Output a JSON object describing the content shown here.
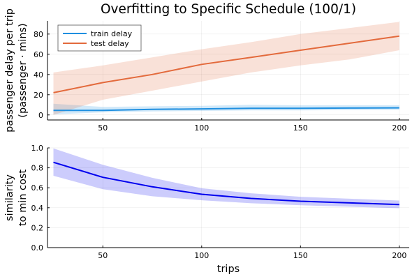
{
  "figure": {
    "title": "Overfitting to Specific Schedule (100/1)"
  },
  "chart_data": [
    {
      "type": "line",
      "title": "Overfitting to Specific Schedule (100/1)",
      "xlabel": "",
      "ylabel_lines": [
        "passenger delay per trip",
        "(passenger · mins)"
      ],
      "xlim": [
        22,
        205
      ],
      "ylim": [
        -5,
        93
      ],
      "xticks": [
        50,
        100,
        150,
        200
      ],
      "yticks": [
        0,
        20,
        40,
        60,
        80
      ],
      "grid": true,
      "legend": "top-left",
      "x": [
        25,
        50,
        75,
        100,
        125,
        150,
        175,
        200
      ],
      "series": [
        {
          "name": "train delay",
          "color": "#1f8fe0",
          "band_color": "#1f8fe0",
          "values": [
            4.5,
            4.5,
            5.5,
            6.0,
            6.5,
            6.5,
            6.8,
            7.0
          ],
          "lower": [
            0.5,
            2.5,
            3.5,
            4.0,
            4.5,
            4.5,
            4.8,
            5.0
          ],
          "upper": [
            11.0,
            8.0,
            8.5,
            9.0,
            10.0,
            9.5,
            9.5,
            9.5
          ]
        },
        {
          "name": "test delay",
          "color": "#e36a3c",
          "band_color": "#e36a3c",
          "values": [
            22,
            32,
            40,
            50,
            57,
            64,
            71,
            78
          ],
          "lower": [
            0,
            15,
            24,
            33,
            42,
            49,
            55,
            64
          ],
          "upper": [
            42,
            49,
            57,
            65,
            72,
            80,
            86,
            92
          ]
        }
      ]
    },
    {
      "type": "line",
      "title": "",
      "xlabel": "trips",
      "ylabel_lines": [
        "similarity",
        "to min cost"
      ],
      "xlim": [
        22,
        205
      ],
      "ylim": [
        0,
        1.0
      ],
      "xticks": [
        50,
        100,
        150,
        200
      ],
      "yticks": [
        0.0,
        0.2,
        0.4,
        0.6,
        0.8,
        1.0
      ],
      "ytick_labels": [
        "0.0",
        "0.2",
        "0.4",
        "0.6",
        "0.8",
        "1.0"
      ],
      "grid": true,
      "x": [
        25,
        50,
        75,
        100,
        125,
        150,
        175,
        200
      ],
      "series": [
        {
          "color": "#0000ee",
          "band_color": "#0000ee",
          "values": [
            0.855,
            0.705,
            0.61,
            0.535,
            0.493,
            0.465,
            0.448,
            0.432
          ],
          "lower": [
            0.72,
            0.585,
            0.515,
            0.475,
            0.445,
            0.425,
            0.41,
            0.395
          ],
          "upper": [
            0.995,
            0.83,
            0.7,
            0.595,
            0.545,
            0.51,
            0.49,
            0.472
          ]
        }
      ]
    }
  ]
}
